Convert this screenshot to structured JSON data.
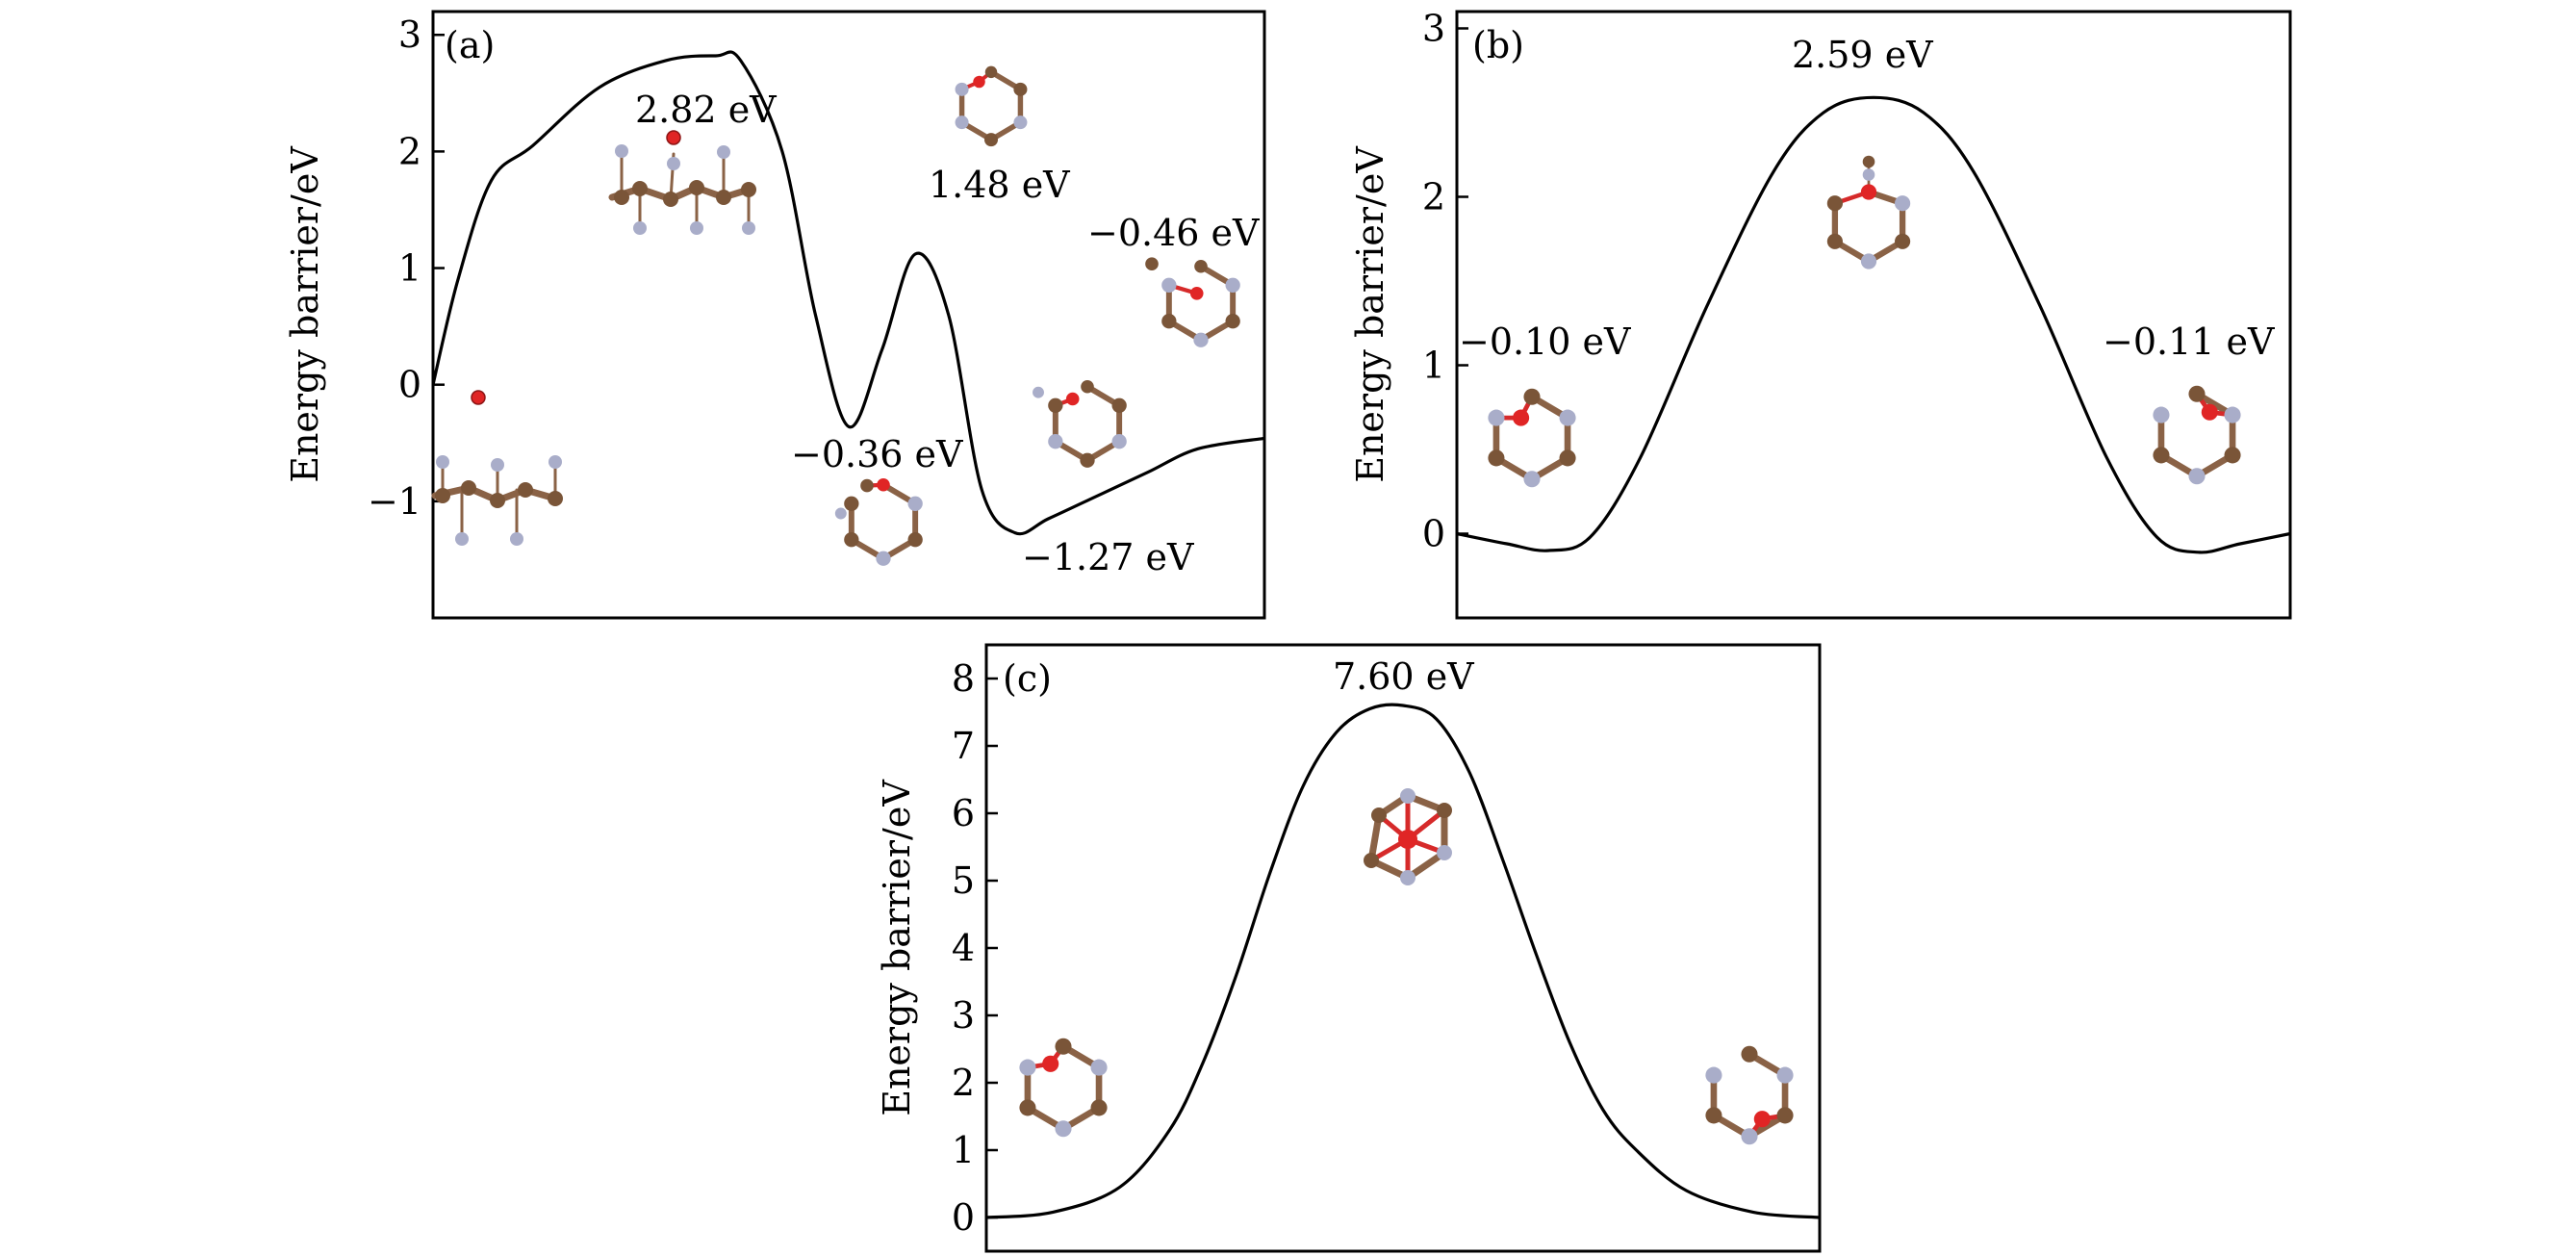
{
  "colors": {
    "curve": "#000000",
    "carbon_atom": "#7a5538",
    "nitrogen_atom": "#a9adc9",
    "oxygen_atom": "#e02525"
  },
  "chart_data": [
    {
      "type": "line",
      "panel_label": "(a)",
      "ylabel": "Energy barrier/eV",
      "ylim": [
        -2.0,
        3.2
      ],
      "xlim": [
        0,
        1
      ],
      "yticks": [
        -1,
        0,
        1,
        2,
        3
      ],
      "ytick_labels": [
        "−1",
        "0",
        "1",
        "2",
        "3"
      ],
      "xticks_visible": false,
      "grid": false,
      "series": [
        {
          "x": [
            0,
            0.03,
            0.07,
            0.12,
            0.2,
            0.28,
            0.34,
            0.37,
            0.42,
            0.46,
            0.5,
            0.54,
            0.58,
            0.62,
            0.66,
            0.7,
            0.74,
            0.8,
            0.86,
            0.92,
            1.0
          ],
          "values": [
            0.0,
            0.9,
            1.75,
            2.05,
            2.55,
            2.78,
            2.82,
            2.78,
            2.0,
            0.6,
            -0.36,
            0.3,
            1.12,
            0.6,
            -0.9,
            -1.27,
            -1.15,
            -0.95,
            -0.75,
            -0.55,
            -0.46
          ]
        }
      ],
      "annotations": [
        "2.82 eV",
        "1.48 eV",
        "−0.36 eV",
        "−0.46 eV",
        "−1.27 eV"
      ]
    },
    {
      "type": "line",
      "panel_label": "(b)",
      "ylabel": "Energy barrier/eV",
      "ylim": [
        -0.5,
        3.1
      ],
      "xlim": [
        0,
        1
      ],
      "yticks": [
        0,
        1,
        2,
        3
      ],
      "ytick_labels": [
        "0",
        "1",
        "2",
        "3"
      ],
      "xticks_visible": false,
      "grid": false,
      "series": [
        {
          "x": [
            0,
            0.06,
            0.11,
            0.16,
            0.22,
            0.3,
            0.38,
            0.44,
            0.5,
            0.56,
            0.62,
            0.7,
            0.78,
            0.84,
            0.89,
            0.94,
            1.0
          ],
          "values": [
            0.0,
            -0.06,
            -0.1,
            -0.02,
            0.45,
            1.35,
            2.15,
            2.5,
            2.59,
            2.5,
            2.15,
            1.35,
            0.45,
            -0.02,
            -0.11,
            -0.06,
            0.0
          ]
        }
      ],
      "annotations": [
        "2.59 eV",
        "−0.10 eV",
        "−0.11 eV"
      ]
    },
    {
      "type": "line",
      "panel_label": "(c)",
      "ylabel": "Energy barrier/eV",
      "ylim": [
        -0.5,
        8.5
      ],
      "xlim": [
        0,
        1
      ],
      "yticks": [
        0,
        1,
        2,
        3,
        4,
        5,
        6,
        7,
        8
      ],
      "ytick_labels": [
        "0",
        "1",
        "2",
        "3",
        "4",
        "5",
        "6",
        "7",
        "8"
      ],
      "xticks_visible": false,
      "grid": false,
      "series": [
        {
          "x": [
            0,
            0.08,
            0.16,
            0.22,
            0.26,
            0.3,
            0.34,
            0.38,
            0.42,
            0.46,
            0.5,
            0.54,
            0.58,
            0.62,
            0.66,
            0.7,
            0.74,
            0.78,
            0.84,
            0.92,
            1.0
          ],
          "values": [
            0.0,
            0.08,
            0.45,
            1.3,
            2.3,
            3.6,
            5.1,
            6.4,
            7.2,
            7.55,
            7.6,
            7.4,
            6.6,
            5.3,
            3.9,
            2.6,
            1.6,
            1.0,
            0.4,
            0.08,
            0.0
          ]
        }
      ],
      "annotations": [
        "7.60 eV"
      ]
    }
  ]
}
